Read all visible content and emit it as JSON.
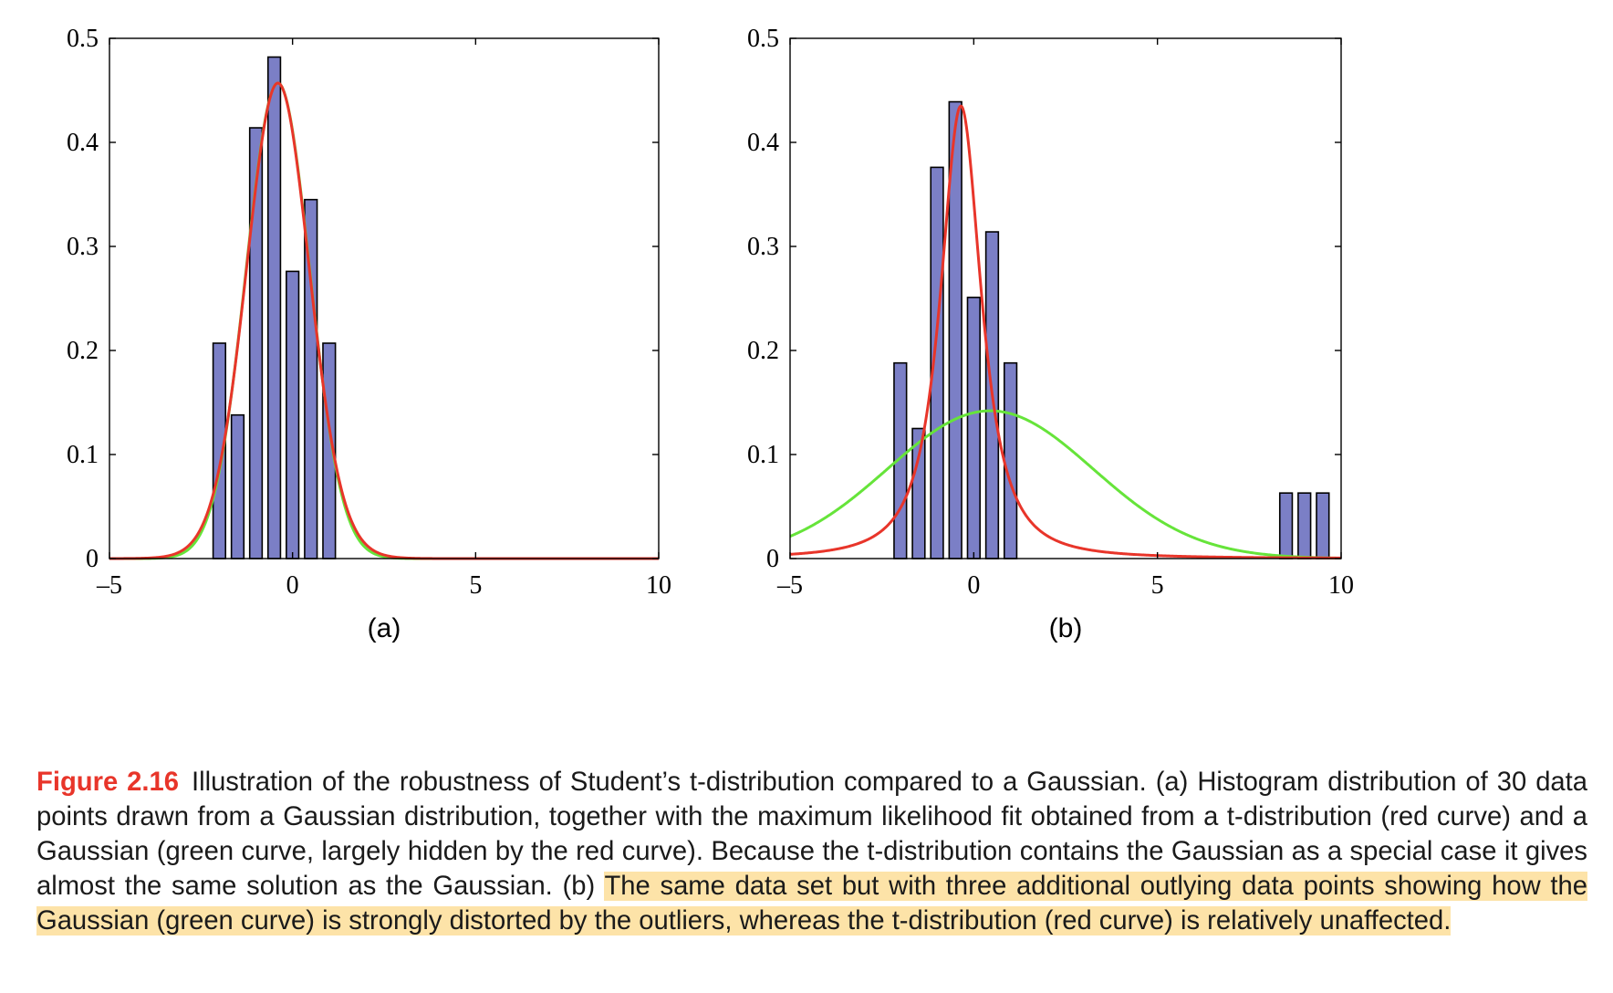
{
  "chart_data": [
    {
      "type": "bar",
      "panel_label": "(a)",
      "xlim": [
        -5,
        10
      ],
      "ylim": [
        0,
        0.5
      ],
      "xticks": [
        "–5",
        "0",
        "5",
        "10"
      ],
      "yticks": [
        "0",
        "0.1",
        "0.2",
        "0.3",
        "0.4",
        "0.5"
      ],
      "grid": false,
      "histogram": {
        "bin_centers": [
          -2.0,
          -1.5,
          -1.0,
          -0.5,
          0.0,
          0.5,
          1.0
        ],
        "values": [
          0.207,
          0.138,
          0.414,
          0.482,
          0.276,
          0.345,
          0.207
        ],
        "color": "#7b7fc6"
      },
      "series": [
        {
          "kind": "t-distribution",
          "mean": -0.4,
          "scale": 0.87,
          "dof": 30,
          "peak": 0.457,
          "color": "#e8352a"
        },
        {
          "kind": "gaussian",
          "mean": -0.4,
          "sd": 0.87,
          "peak": 0.457,
          "color": "#66e43a"
        }
      ]
    },
    {
      "type": "bar",
      "panel_label": "(b)",
      "xlim": [
        -5,
        10
      ],
      "ylim": [
        0,
        0.5
      ],
      "xticks": [
        "–5",
        "0",
        "5",
        "10"
      ],
      "yticks": [
        "0",
        "0.1",
        "0.2",
        "0.3",
        "0.4",
        "0.5"
      ],
      "grid": false,
      "histogram": {
        "bin_centers": [
          -2.0,
          -1.5,
          -1.0,
          -0.5,
          0.0,
          0.5,
          1.0,
          8.5,
          9.0,
          9.5
        ],
        "values": [
          0.188,
          0.125,
          0.376,
          0.439,
          0.251,
          0.314,
          0.188,
          0.063,
          0.063,
          0.063
        ],
        "color": "#7b7fc6"
      },
      "series": [
        {
          "kind": "t-distribution",
          "mean": -0.35,
          "scale": 0.62,
          "dof": 1.6,
          "peak": 0.435,
          "color": "#e8352a"
        },
        {
          "kind": "gaussian",
          "mean": 0.45,
          "sd": 2.8,
          "peak": 0.142,
          "color": "#66e43a"
        }
      ]
    }
  ],
  "caption": {
    "label": "Figure 2.16",
    "text": "Illustration of the robustness of Student’s t-distribution compared to a Gaussian. (a) Histogram distribution of 30 data points drawn from a Gaussian distribution, together with the maximum likelihood fit obtained from a t-distribution (red curve) and a Gaussian (green curve, largely hidden by the red curve). Because the t-distribution contains the Gaussian as a special case it gives almost the same solution as the Gaussian. (b)",
    "highlighted": "The same data set but with three additional outlying data points showing how the Gaussian (green curve) is strongly distorted by the outliers, whereas the t-distribution (red curve) is relatively unaffected."
  }
}
